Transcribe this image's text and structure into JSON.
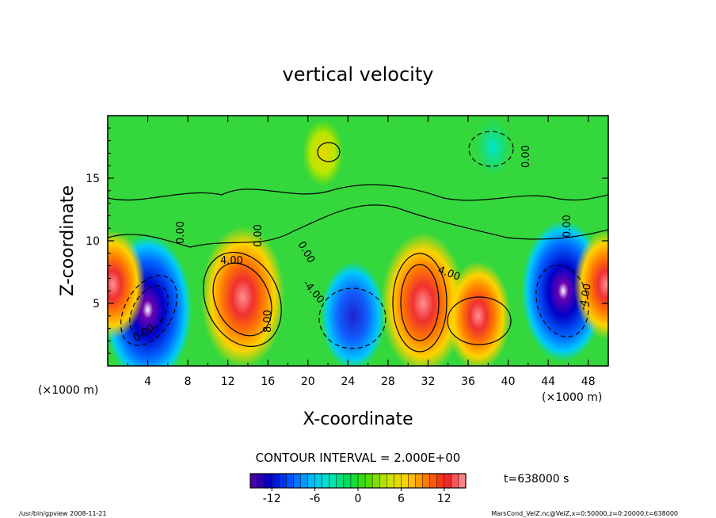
{
  "chart_data": {
    "type": "heatmap",
    "title": "vertical velocity",
    "xlabel": "X-coordinate",
    "ylabel": "Z-coordinate",
    "x_unit": "(×1000 m)",
    "y_unit": "(×1000 m)",
    "xlim": [
      0,
      50
    ],
    "ylim": [
      0,
      20
    ],
    "x_ticks": [
      4,
      8,
      12,
      16,
      20,
      24,
      28,
      32,
      36,
      40,
      44,
      48
    ],
    "y_ticks": [
      5,
      10,
      15
    ],
    "contour_interval_text": "CONTOUR INTERVAL = 2.000E+00",
    "contour_labels": [
      "4.00",
      "4.00",
      "0.00",
      "0.00",
      "0.00",
      "0.00",
      "0.00",
      "-4.00",
      "-4.00",
      "0.00",
      "8.00"
    ],
    "colorbar": {
      "min": -15,
      "max": 15,
      "step": 1,
      "ticks": [
        -12,
        -6,
        0,
        6,
        12
      ],
      "colormap": [
        "#5a00a0",
        "#0000c8",
        "#0050ff",
        "#00b4ff",
        "#00e6c8",
        "#00dc50",
        "#50dc00",
        "#c8e600",
        "#ffd200",
        "#ff7800",
        "#f01e1e",
        "#ff9a9a"
      ]
    },
    "time_text": "t=638000 s",
    "features": [
      {
        "x": 4.0,
        "z": 4.5,
        "value": -14,
        "sign": "negative"
      },
      {
        "x": 13.5,
        "z": 5.5,
        "value": 13,
        "sign": "positive"
      },
      {
        "x": 24.5,
        "z": 4.0,
        "value": -9,
        "sign": "negative"
      },
      {
        "x": 31.5,
        "z": 5.0,
        "value": 13,
        "sign": "positive"
      },
      {
        "x": 37.0,
        "z": 4.0,
        "value": 9,
        "sign": "positive"
      },
      {
        "x": 45.5,
        "z": 6.0,
        "value": -13,
        "sign": "negative"
      },
      {
        "x": 0.5,
        "z": 6.5,
        "value": 9,
        "sign": "positive"
      },
      {
        "x": 49.8,
        "z": 6.5,
        "value": 9,
        "sign": "positive"
      },
      {
        "x": 21.5,
        "z": 17.0,
        "value": 4,
        "sign": "positive"
      },
      {
        "x": 38.5,
        "z": 17.5,
        "value": -3,
        "sign": "negative"
      }
    ]
  },
  "footer": {
    "left": "/usr/bin/gpview   2008-11-21",
    "right": "MarsCond_VelZ.nc@VelZ,x=0:50000,z=0:20000,t=638000"
  }
}
